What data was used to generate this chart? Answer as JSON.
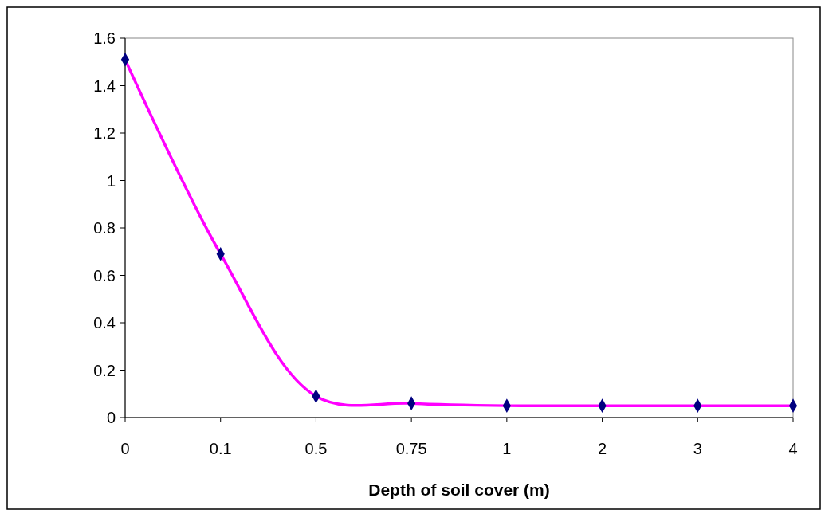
{
  "chart_data": {
    "type": "line",
    "xlabel": "Depth of soil cover (m)",
    "categories": [
      "0",
      "0.1",
      "0.5",
      "0.75",
      "1",
      "2",
      "3",
      "4"
    ],
    "series": [
      {
        "color": "#ff00ff",
        "values": [
          1.51,
          0.69,
          0.09,
          0.06,
          0.05,
          0.05,
          0.05,
          0.05
        ]
      }
    ],
    "marker": "diamond",
    "grid": false,
    "ylim": [
      0,
      1.6
    ],
    "yticks": [
      {
        "value": 0,
        "label": "0"
      },
      0.2,
      0.4,
      0.6,
      0.8,
      {
        "value": 1,
        "label": "1"
      },
      1.2,
      1.4,
      1.6
    ]
  }
}
